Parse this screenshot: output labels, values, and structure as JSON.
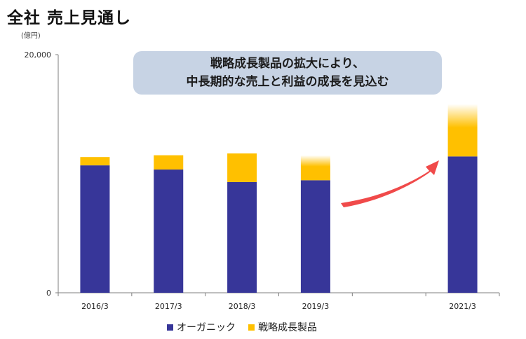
{
  "page": {
    "title": "全社 売上見通し",
    "unit": "(億円)"
  },
  "callout": {
    "line1": "戦略成長製品の拡大により、",
    "line2": "中長期的な売上と利益の成長を見込む"
  },
  "colors": {
    "organic": "#373699",
    "strategic": "#ffc000",
    "arrow": "#f04a4a",
    "axis": "#7f7f7f"
  },
  "chart_data": {
    "type": "bar",
    "stacked": true,
    "categories": [
      "2016/3",
      "2017/3",
      "2018/3",
      "2019/3",
      "",
      "2021/3"
    ],
    "series": [
      {
        "name": "オーガニック",
        "values": [
          10700,
          10350,
          9300,
          9450,
          null,
          11450
        ]
      },
      {
        "name": "戦略成長製品",
        "values": [
          700,
          1200,
          2400,
          2100,
          null,
          4400
        ]
      }
    ],
    "yticks": [
      "0",
      "20,000"
    ],
    "ylim": [
      0,
      20000
    ],
    "faded_top_bars": [
      "2019/3",
      "2021/3"
    ],
    "legend_position": "bottom"
  }
}
